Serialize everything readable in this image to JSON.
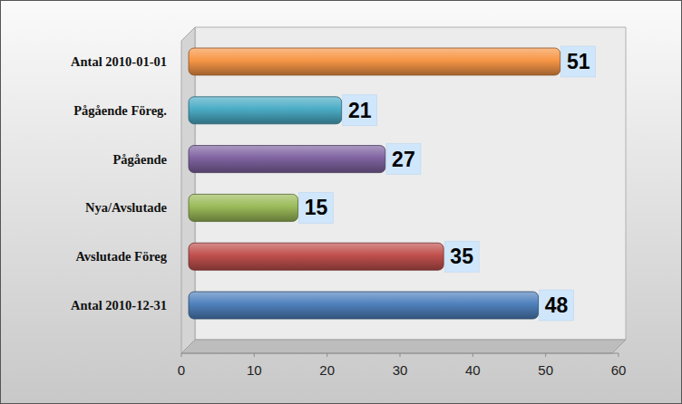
{
  "chart_data": {
    "type": "bar",
    "orientation": "horizontal",
    "categories": [
      "Antal 2010-01-01",
      "Pågående Föreg.",
      "Pågående",
      "Nya/Avslutade",
      "Avslutade Föreg",
      "Antal 2010-12-31"
    ],
    "values": [
      51,
      21,
      27,
      15,
      35,
      48
    ],
    "colors": [
      "#f79646",
      "#4bacc6",
      "#8064a2",
      "#9bbb59",
      "#c0504d",
      "#4f81bd"
    ],
    "xlim": [
      0,
      60
    ],
    "xticks": [
      0,
      10,
      20,
      30,
      40,
      50,
      60
    ],
    "data_labels": true,
    "grid": false
  }
}
